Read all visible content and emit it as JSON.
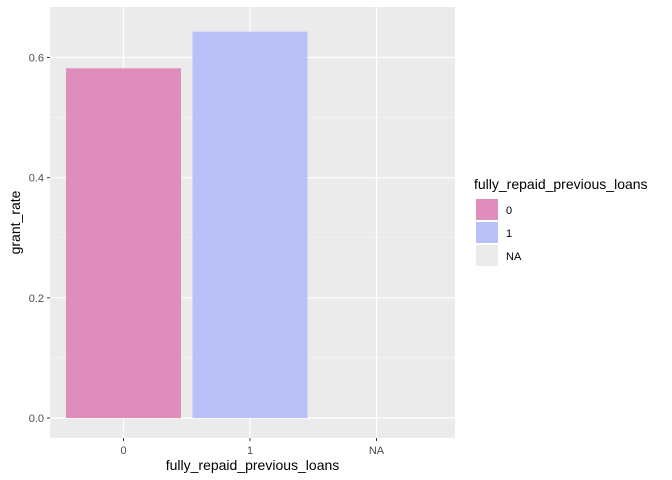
{
  "chart_data": {
    "type": "bar",
    "categories": [
      "0",
      "1",
      "NA"
    ],
    "values": [
      0.582,
      0.643,
      0
    ],
    "colors": [
      "#DF8DBA",
      "#BAC1F7",
      "#EBEBEB"
    ],
    "xlabel": "fully_repaid_previous_loans",
    "ylabel": "grant_rate",
    "ylim": [
      0,
      0.645
    ],
    "yticks": [
      0.0,
      0.2,
      0.4,
      0.6
    ],
    "ytick_labels": [
      "0.0",
      "0.2",
      "0.4",
      "0.6"
    ],
    "grid": true,
    "legend": {
      "title": "fully_repaid_previous_loans",
      "placement": "right",
      "entries": [
        "0",
        "1",
        "NA"
      ]
    }
  }
}
